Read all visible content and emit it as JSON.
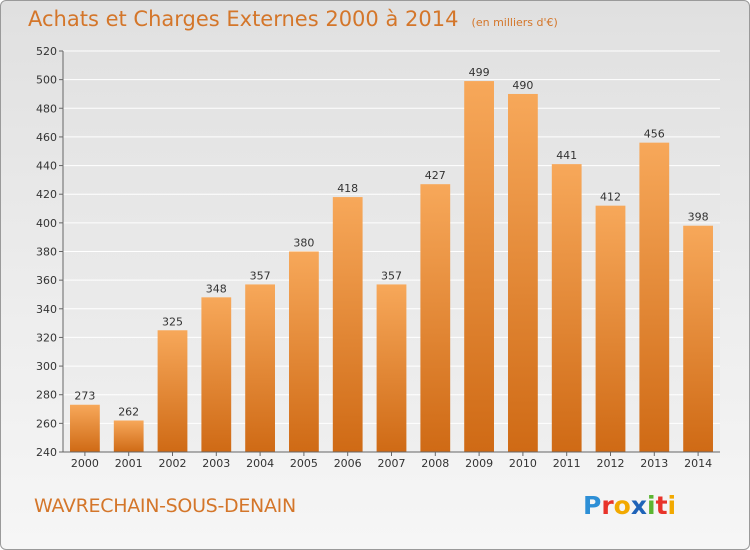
{
  "header": {
    "title": "Achats et Charges Externes 2000 à 2014",
    "subtitle": "(en milliers d'€)"
  },
  "footer": {
    "city": "WAVRECHAIN-SOUS-DENAIN",
    "logo_text": "Proxiti"
  },
  "colors": {
    "accent": "#d4762a",
    "bar_light": "#f7a85a",
    "bar_dark": "#cf6a15"
  },
  "chart_data": {
    "type": "bar",
    "title": "Achats et Charges Externes 2000 à 2014",
    "subtitle": "(en milliers d'€)",
    "xlabel": "",
    "ylabel": "",
    "categories": [
      "2000",
      "2001",
      "2002",
      "2003",
      "2004",
      "2005",
      "2006",
      "2007",
      "2008",
      "2009",
      "2010",
      "2011",
      "2012",
      "2013",
      "2014"
    ],
    "values": [
      273,
      262,
      325,
      348,
      357,
      380,
      418,
      357,
      427,
      499,
      490,
      441,
      412,
      456,
      398
    ],
    "ylim": [
      240,
      520
    ],
    "yticks": [
      240,
      260,
      280,
      300,
      320,
      340,
      360,
      380,
      400,
      420,
      440,
      460,
      480,
      500,
      520
    ],
    "grid": true,
    "legend": "none"
  }
}
